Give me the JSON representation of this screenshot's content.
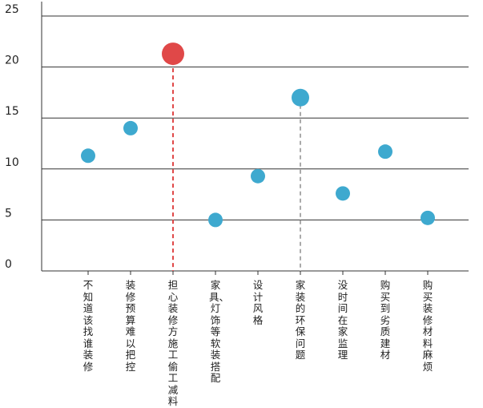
{
  "chart_data": {
    "type": "scatter",
    "title": "",
    "xlabel": "",
    "ylabel": "",
    "ylim": [
      0,
      25
    ],
    "yticks": [
      0,
      5,
      10,
      15,
      20,
      25
    ],
    "ytick_labels": [
      "0",
      "5",
      "10",
      "15",
      "20",
      "25"
    ],
    "categories": [
      "不知道该找谁装修",
      "装修预算难以把控",
      "担心装修方施工偷工减料",
      "家具、灯饰等软装搭配",
      "设计风格",
      "家装的环保问题",
      "没时间在家监理",
      "购买到劣质建材",
      "购买装修材料麻烦"
    ],
    "values": [
      11.3,
      14.0,
      21.3,
      5.0,
      9.3,
      17.0,
      7.6,
      11.7,
      5.2
    ],
    "highlight_index": 2,
    "secondary_index": 5,
    "colors": {
      "point": "#3ea9cf",
      "highlight": "#e04848",
      "secondary_drop_line": "#aaaaaa",
      "grid": "#333333"
    }
  }
}
